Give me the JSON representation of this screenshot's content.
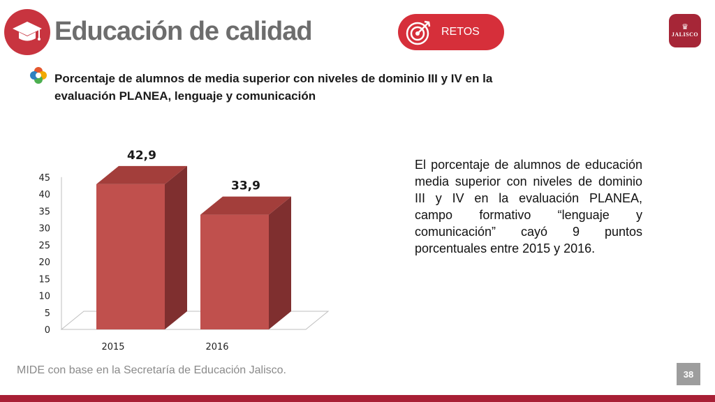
{
  "header": {
    "title": "Educación de calidad",
    "icon": "graduation-cap-icon",
    "badge": {
      "label": "RETOS",
      "icon": "target-arrow-icon",
      "color": "#d62f3a"
    },
    "logo_text": "JALISCO"
  },
  "subtitle": "Porcentaje de alumnos de media superior con niveles de dominio III y IV en la evaluación PLANEA, lenguaje y comunicación",
  "description": "El porcentaje de alumnos de educación media superior con niveles de dominio III y IV en la evaluación PLANEA, campo formativo “lenguaje y comunicación” cayó 9 puntos porcentuales entre 2015 y 2016.",
  "footer": {
    "source": "MIDE con base en la Secretaría de Educación Jalisco.",
    "page": "38"
  },
  "colors": {
    "accent": "#c8343f",
    "bar_front": "#c0504d",
    "bar_side": "#7f2f2f",
    "bar_top": "#a33e3b",
    "bottom_bar": "#a81f35"
  },
  "chart_data": {
    "type": "bar",
    "style": "3d-column",
    "categories": [
      "2015",
      "2016"
    ],
    "values": [
      42.9,
      33.9
    ],
    "data_labels": [
      "42,9",
      "33,9"
    ],
    "ylim": [
      0,
      45
    ],
    "yticks": [
      "0",
      "5",
      "10",
      "15",
      "20",
      "25",
      "30",
      "35",
      "40",
      "45"
    ],
    "title": "",
    "xlabel": "",
    "ylabel": "",
    "grid": false,
    "legend": "none"
  }
}
